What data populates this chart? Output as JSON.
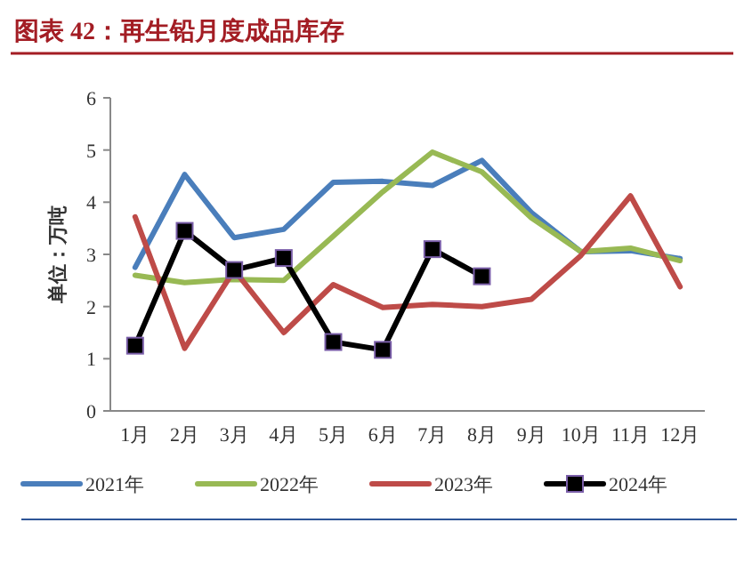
{
  "chart_data": {
    "type": "line",
    "title": "图表 42：再生铅月度成品库存",
    "ylabel": "单位：万吨",
    "categories": [
      "1月",
      "2月",
      "3月",
      "4月",
      "5月",
      "6月",
      "7月",
      "8月",
      "9月",
      "10月",
      "11月",
      "12月"
    ],
    "ylim": [
      0,
      6
    ],
    "yticks": [
      0,
      1,
      2,
      3,
      4,
      5,
      6
    ],
    "legend": "bottom",
    "marker": "none",
    "series": [
      {
        "name": "2021年",
        "color": "#4a7ebb",
        "values": [
          2.75,
          4.53,
          3.32,
          3.48,
          4.38,
          4.4,
          4.32,
          4.8,
          3.8,
          3.05,
          3.07,
          2.92
        ]
      },
      {
        "name": "2022年",
        "color": "#98b954",
        "values": [
          2.6,
          2.46,
          2.52,
          2.5,
          3.35,
          4.2,
          4.96,
          4.58,
          3.7,
          3.05,
          3.12,
          2.88
        ]
      },
      {
        "name": "2023年",
        "color": "#be4b48",
        "values": [
          3.72,
          1.2,
          2.7,
          1.5,
          2.42,
          1.98,
          2.04,
          2.0,
          2.14,
          2.98,
          4.12,
          2.38
        ]
      },
      {
        "name": "2024年",
        "color": "#000000",
        "marker": "square",
        "values": [
          1.25,
          3.45,
          2.7,
          2.93,
          1.32,
          1.17,
          3.1,
          2.58,
          null,
          null,
          null,
          null
        ]
      }
    ]
  }
}
